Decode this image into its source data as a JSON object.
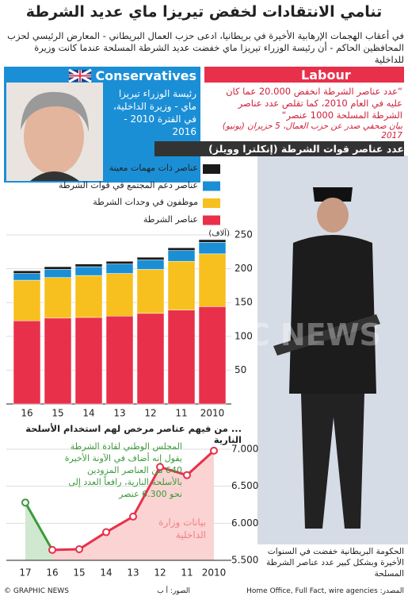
{
  "header": {
    "title": "تنامي الانتقادات لخفض تيريزا ماي عديد الشرطة",
    "subtitle": "في أعقاب الهجمات الإرهابية الأخيرة في بريطانيا، ادعى حزب العمال البريطاني - المعارض الرئيسي لحزب المحافظين الحاكم - أن رئيسة الوزراء تيريزا ماي خفضت عديد الشرطة المسلحة عندما كانت وزيرة للداخلية"
  },
  "conservatives": {
    "logo": "Conservatives",
    "caption": "رئيسة الوزراء تيريزا ماي - وزيرة الداخلية، في الفترة 2010 - 2016"
  },
  "labour": {
    "logo": "Labour",
    "quote": "“عدد عناصر الشرطة انخفض 20.000 عما كان عليه في العام 2010، كما تقلص عدد عناصر الشرطة المسلحة 1000 عنصر“",
    "source": "بيان صحفي صدر عن حزب العمال، 5 حزيران (يونيو) 2017"
  },
  "photo_caption": "الحكومة البريطانية خفضت في السنوات الأخيرة وبشكل كبير عدد عناصر الشرطة المسلحة",
  "watermark": "GRAPHIC NEWS",
  "footer": {
    "credit": "© GRAPHIC NEWS",
    "photos": "الصور: أ ب",
    "source": "المصدر: Home Office, Full Fact, wire agencies"
  },
  "chart_data": [
    {
      "type": "bar",
      "stacked": true,
      "title": "عدد عناصر قوات الشرطة (إنكلترا وويلز)",
      "unit_label": "(آلاف)",
      "categories": [
        "16",
        "15",
        "14",
        "13",
        "12",
        "11",
        "2010"
      ],
      "series": [
        {
          "name": "عناصر ذات مهمات معينة",
          "color": "#1a1a1a",
          "values": [
            4,
            4,
            4,
            4,
            4,
            4,
            4
          ]
        },
        {
          "name": "عناصر دعم المجتمع في قوات الشرطة",
          "color": "#1b8fd6",
          "values": [
            10,
            12,
            13,
            14,
            14,
            16,
            17
          ]
        },
        {
          "name": "موظفون في وحدات الشرطة",
          "color": "#f7c01e",
          "values": [
            60,
            60,
            62,
            63,
            65,
            72,
            78
          ]
        },
        {
          "name": "عناصر الشرطة",
          "color": "#e8304a",
          "values": [
            123,
            127,
            128,
            130,
            134,
            139,
            144
          ]
        }
      ],
      "ylim": [
        0,
        250
      ],
      "yticks": [
        50,
        100,
        150,
        200,
        250
      ]
    },
    {
      "type": "line",
      "title": "... من فيهم عناصر مرخص لهم استخدام الأسلحة النارية",
      "categories": [
        "17",
        "16",
        "15",
        "14",
        "13",
        "12",
        "11",
        "2010"
      ],
      "values": [
        6280,
        5640,
        5650,
        5880,
        6090,
        6760,
        6650,
        6980
      ],
      "color": "#e8304a",
      "area_color": "#fbd3d3",
      "recent_color": "#3a9a3a",
      "recent_area_color": "#cfe8cf",
      "ylim": [
        5500,
        7000
      ],
      "yticks": [
        {
          "value": 5500,
          "label": "5.500"
        },
        {
          "value": 6000,
          "label": "6.000"
        },
        {
          "value": 6500,
          "label": "6.500"
        },
        {
          "value": 7000,
          "label": "7.000"
        }
      ],
      "annotations": [
        {
          "text": "المجلس الوطني لقادة الشرطة يقول إنه أضاف في الآونة الأخيرة 640 من العناصر المزودين بالأسلحة النارية، رافعاً العدد إلى نحو 6.300 عنصر",
          "color": "#3a9a3a"
        },
        {
          "text": "بيانات وزارة الداخلية",
          "color": "#f08080"
        }
      ]
    }
  ]
}
